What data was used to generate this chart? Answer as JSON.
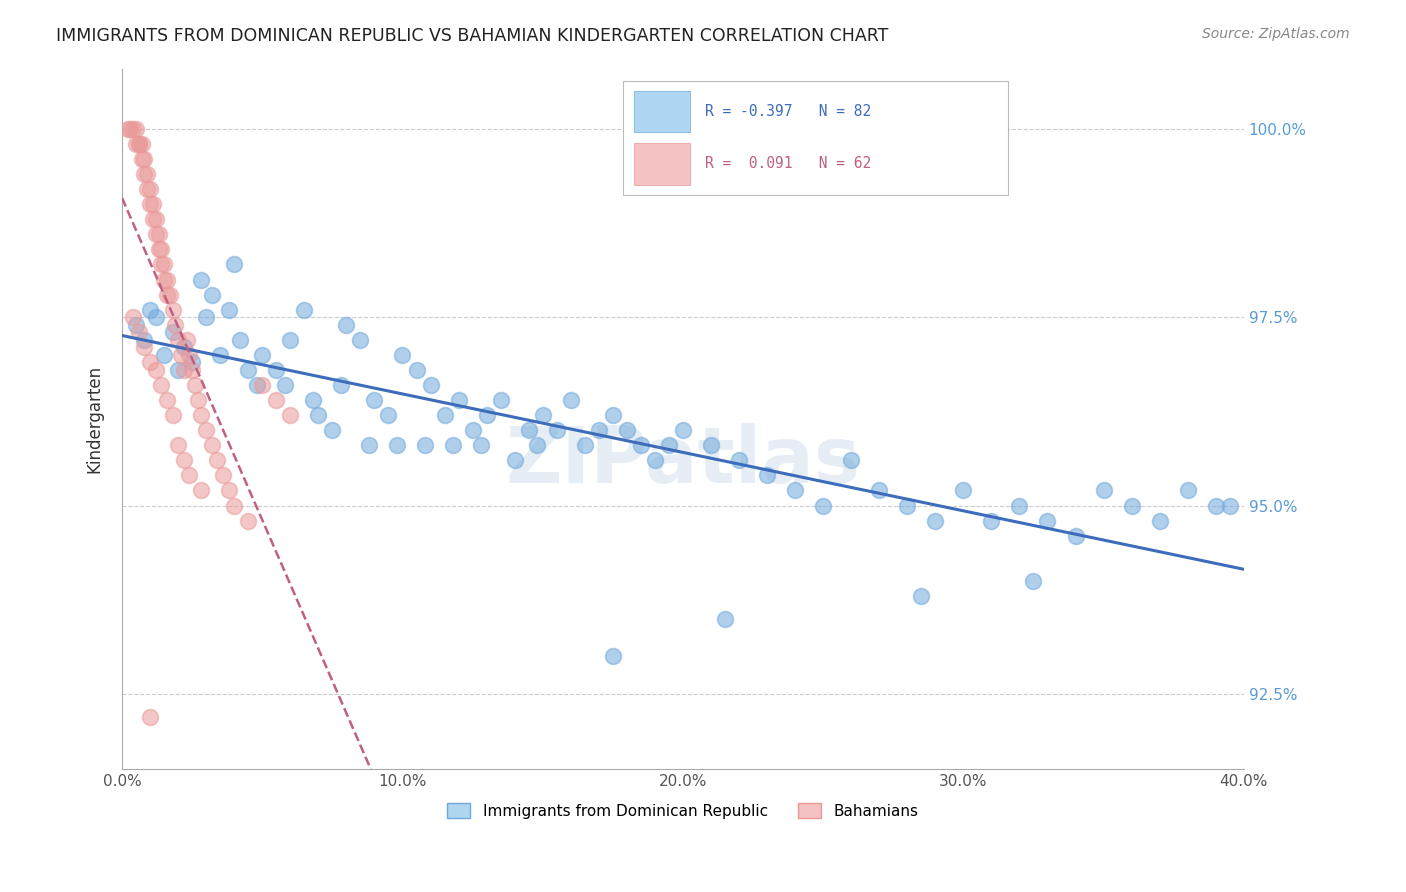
{
  "title": "IMMIGRANTS FROM DOMINICAN REPUBLIC VS BAHAMIAN KINDERGARTEN CORRELATION CHART",
  "source": "Source: ZipAtlas.com",
  "ylabel": "Kindergarten",
  "ytick_labels": [
    "92.5%",
    "95.0%",
    "97.5%",
    "100.0%"
  ],
  "ytick_values": [
    0.925,
    0.95,
    0.975,
    1.0
  ],
  "xmin": 0.0,
  "xmax": 0.4,
  "ymin": 0.915,
  "ymax": 1.008,
  "legend_blue_label": "R = -0.397   N = 82",
  "legend_pink_label": "R =  0.091   N = 62",
  "legend_bottom_blue": "Immigrants from Dominican Republic",
  "legend_bottom_pink": "Bahamians",
  "blue_color": "#6fa8dc",
  "pink_color": "#ea9999",
  "blue_line_color": "#3d6dba",
  "pink_line_color": "#c06080",
  "watermark": "ZIPatlas",
  "blue_scatter_x": [
    0.005,
    0.008,
    0.01,
    0.012,
    0.015,
    0.018,
    0.02,
    0.022,
    0.025,
    0.028,
    0.03,
    0.032,
    0.035,
    0.038,
    0.04,
    0.042,
    0.045,
    0.048,
    0.05,
    0.055,
    0.058,
    0.06,
    0.065,
    0.068,
    0.07,
    0.075,
    0.078,
    0.08,
    0.085,
    0.088,
    0.09,
    0.095,
    0.098,
    0.1,
    0.105,
    0.108,
    0.11,
    0.115,
    0.118,
    0.12,
    0.125,
    0.128,
    0.13,
    0.135,
    0.14,
    0.145,
    0.148,
    0.15,
    0.155,
    0.16,
    0.165,
    0.17,
    0.175,
    0.18,
    0.185,
    0.19,
    0.195,
    0.2,
    0.21,
    0.22,
    0.23,
    0.24,
    0.25,
    0.26,
    0.27,
    0.28,
    0.29,
    0.3,
    0.31,
    0.32,
    0.33,
    0.34,
    0.35,
    0.36,
    0.37,
    0.38,
    0.39,
    0.395,
    0.175,
    0.215,
    0.285,
    0.325
  ],
  "blue_scatter_y": [
    0.974,
    0.972,
    0.976,
    0.975,
    0.97,
    0.973,
    0.968,
    0.971,
    0.969,
    0.98,
    0.975,
    0.978,
    0.97,
    0.976,
    0.982,
    0.972,
    0.968,
    0.966,
    0.97,
    0.968,
    0.966,
    0.972,
    0.976,
    0.964,
    0.962,
    0.96,
    0.966,
    0.974,
    0.972,
    0.958,
    0.964,
    0.962,
    0.958,
    0.97,
    0.968,
    0.958,
    0.966,
    0.962,
    0.958,
    0.964,
    0.96,
    0.958,
    0.962,
    0.964,
    0.956,
    0.96,
    0.958,
    0.962,
    0.96,
    0.964,
    0.958,
    0.96,
    0.962,
    0.96,
    0.958,
    0.956,
    0.958,
    0.96,
    0.958,
    0.956,
    0.954,
    0.952,
    0.95,
    0.956,
    0.952,
    0.95,
    0.948,
    0.952,
    0.948,
    0.95,
    0.948,
    0.946,
    0.952,
    0.95,
    0.948,
    0.952,
    0.95,
    0.95,
    0.93,
    0.935,
    0.938,
    0.94
  ],
  "pink_scatter_x": [
    0.002,
    0.003,
    0.004,
    0.005,
    0.005,
    0.006,
    0.006,
    0.007,
    0.007,
    0.008,
    0.008,
    0.009,
    0.009,
    0.01,
    0.01,
    0.011,
    0.011,
    0.012,
    0.012,
    0.013,
    0.013,
    0.014,
    0.014,
    0.015,
    0.015,
    0.016,
    0.016,
    0.017,
    0.018,
    0.019,
    0.02,
    0.021,
    0.022,
    0.023,
    0.024,
    0.025,
    0.026,
    0.027,
    0.028,
    0.03,
    0.032,
    0.034,
    0.036,
    0.038,
    0.04,
    0.045,
    0.05,
    0.055,
    0.06,
    0.004,
    0.006,
    0.008,
    0.01,
    0.012,
    0.014,
    0.016,
    0.018,
    0.02,
    0.022,
    0.024,
    0.028,
    0.01
  ],
  "pink_scatter_y": [
    1.0,
    1.0,
    1.0,
    1.0,
    0.998,
    0.998,
    0.998,
    0.998,
    0.996,
    0.996,
    0.994,
    0.994,
    0.992,
    0.992,
    0.99,
    0.99,
    0.988,
    0.988,
    0.986,
    0.986,
    0.984,
    0.984,
    0.982,
    0.982,
    0.98,
    0.98,
    0.978,
    0.978,
    0.976,
    0.974,
    0.972,
    0.97,
    0.968,
    0.972,
    0.97,
    0.968,
    0.966,
    0.964,
    0.962,
    0.96,
    0.958,
    0.956,
    0.954,
    0.952,
    0.95,
    0.948,
    0.966,
    0.964,
    0.962,
    0.975,
    0.973,
    0.971,
    0.969,
    0.968,
    0.966,
    0.964,
    0.962,
    0.958,
    0.956,
    0.954,
    0.952,
    0.922
  ]
}
